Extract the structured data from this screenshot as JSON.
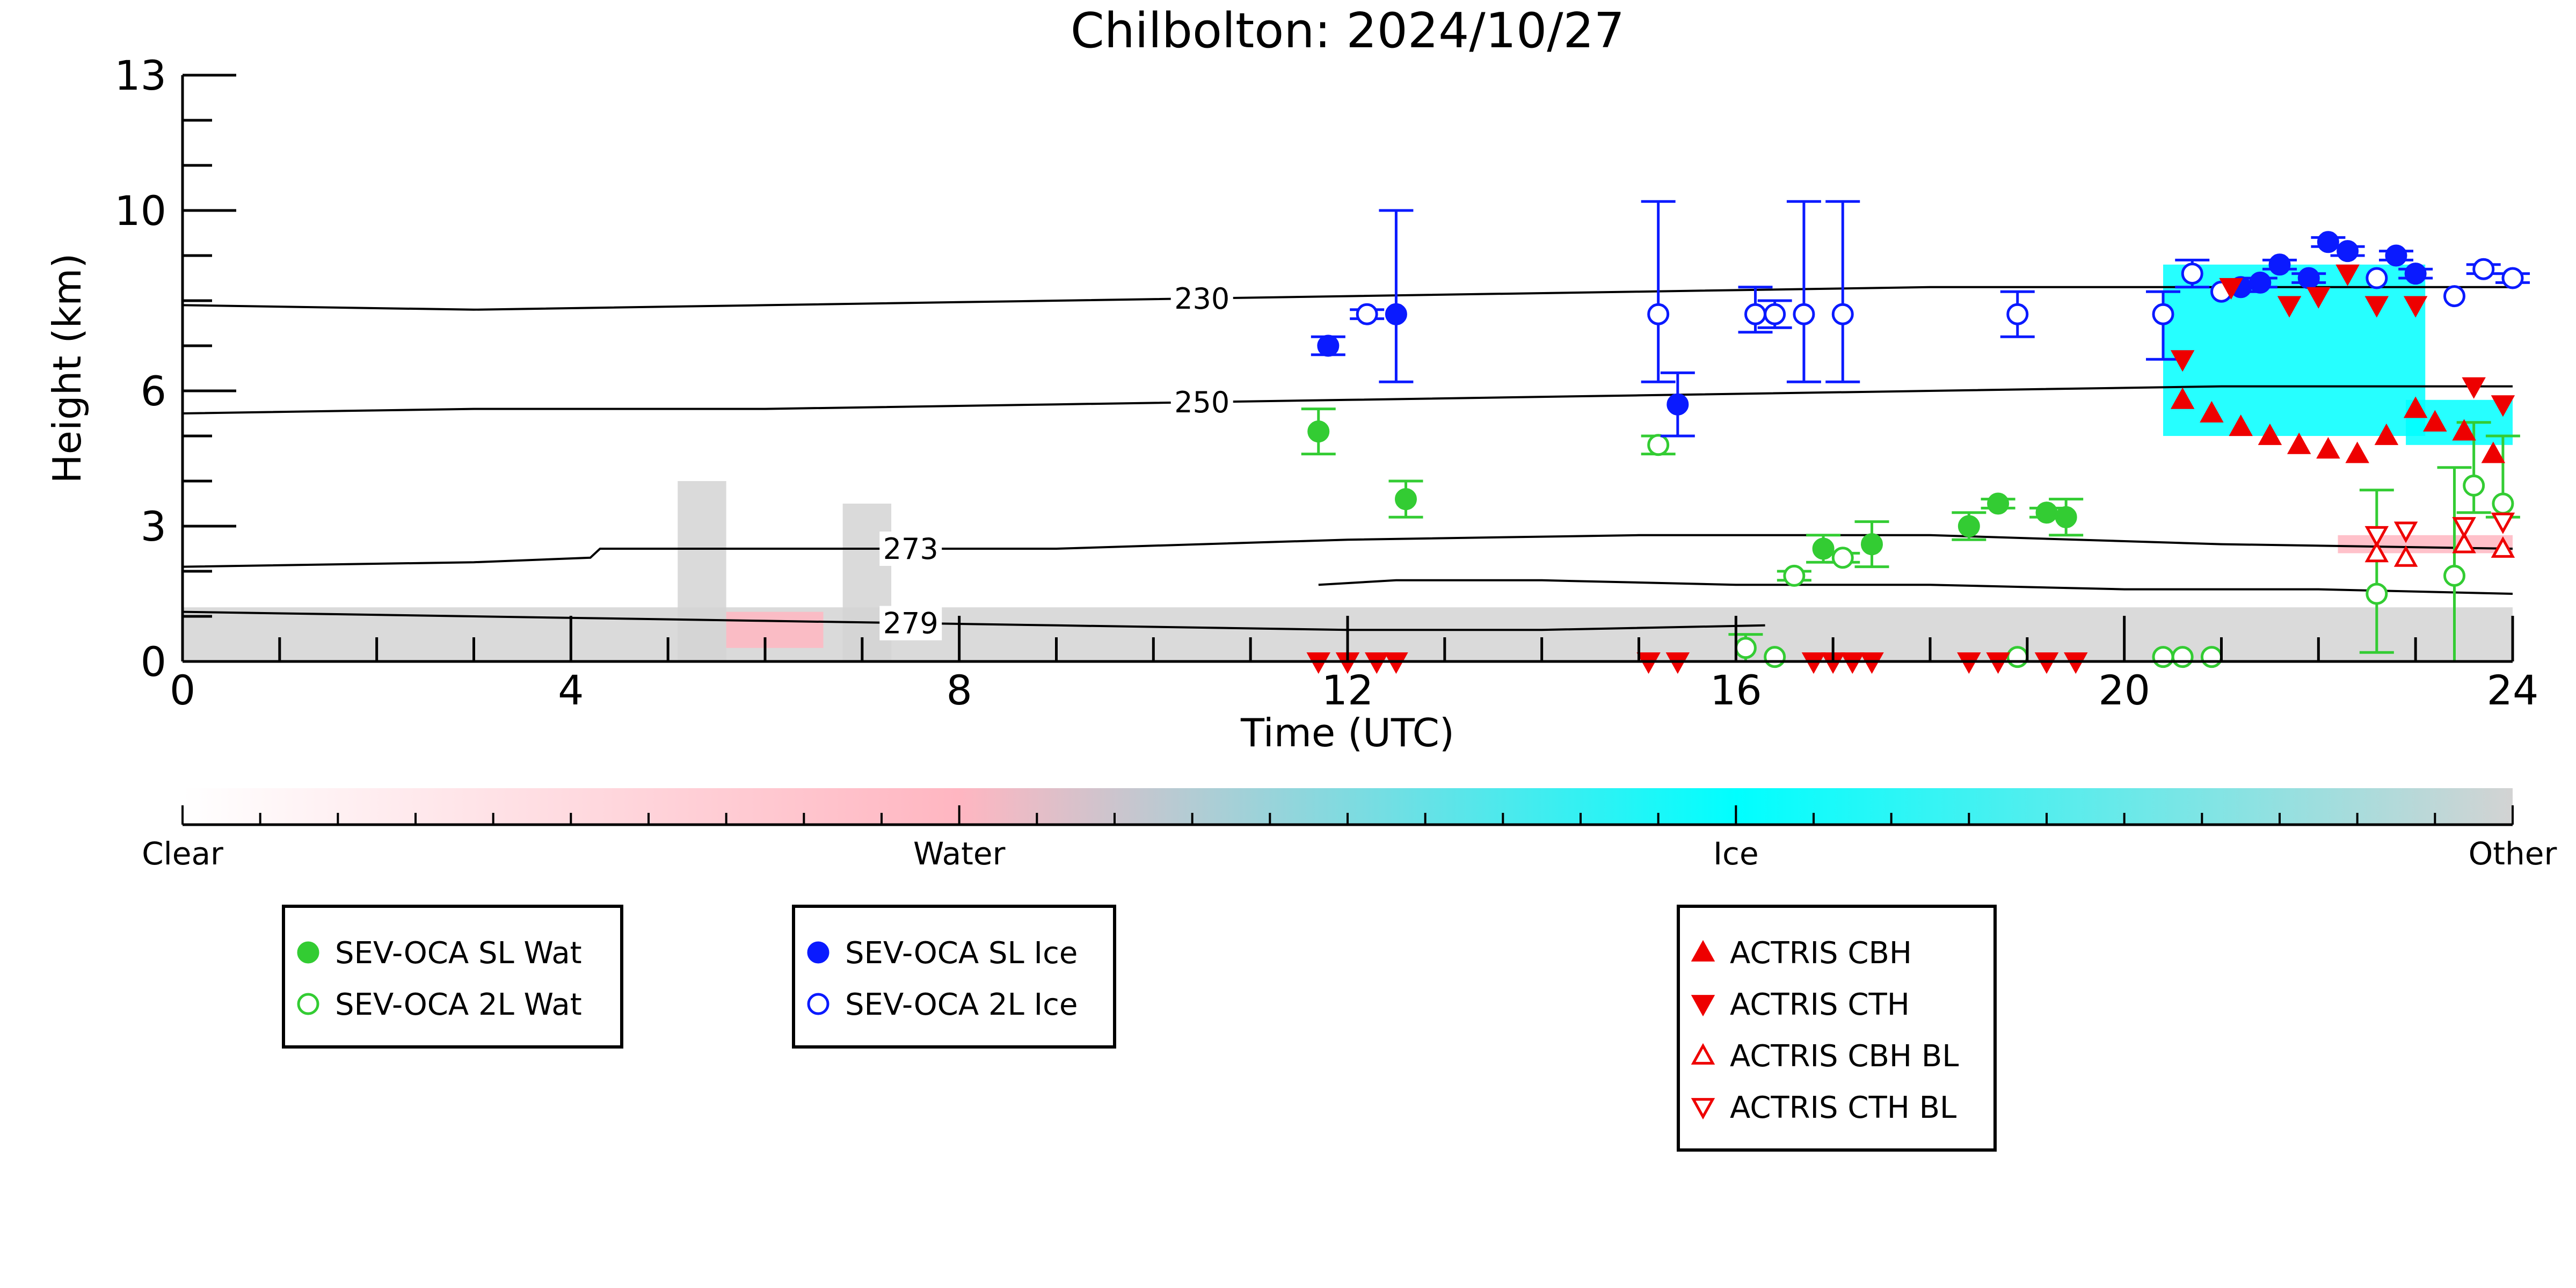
{
  "chart_data": {
    "type": "scatter",
    "title": "Chilbolton: 2024/10/27",
    "xlabel": "Time (UTC)",
    "ylabel": "Height (km)",
    "xlim": [
      0,
      24
    ],
    "ylim": [
      0,
      13
    ],
    "x_ticks": [
      0,
      4,
      8,
      12,
      16,
      20,
      24
    ],
    "y_ticks": [
      0,
      3,
      6,
      10,
      13
    ],
    "grid": false,
    "colorbar": {
      "labels": [
        "Clear",
        "Water",
        "Ice",
        "Other"
      ],
      "colors": [
        "#ffffff",
        "#ffb6c1",
        "#00ffff",
        "#d3d3d3"
      ]
    },
    "contours": [
      {
        "label": "230",
        "x": [
          0,
          3,
          6,
          9,
          12,
          15,
          18,
          21,
          24
        ],
        "y": [
          7.9,
          7.8,
          7.9,
          8.0,
          8.1,
          8.2,
          8.3,
          8.3,
          8.3
        ]
      },
      {
        "label": "250",
        "x": [
          0,
          3,
          6,
          9,
          12,
          15,
          18,
          21,
          24
        ],
        "y": [
          5.5,
          5.6,
          5.6,
          5.7,
          5.8,
          5.9,
          6.0,
          6.1,
          6.1
        ]
      },
      {
        "label": "273",
        "x": [
          0,
          3,
          4.2,
          4.3,
          6,
          9,
          12,
          15,
          18,
          21,
          24
        ],
        "y": [
          2.1,
          2.2,
          2.3,
          2.5,
          2.5,
          2.5,
          2.7,
          2.8,
          2.8,
          2.6,
          2.5
        ]
      },
      {
        "label": "279",
        "x": [
          0,
          3,
          6,
          9,
          12,
          14,
          16.3
        ],
        "y": [
          1.1,
          1.0,
          0.9,
          0.8,
          0.7,
          0.7,
          0.8
        ]
      },
      {
        "label": "",
        "x": [
          11.7,
          12.5,
          14,
          16,
          18,
          20,
          22,
          24
        ],
        "y": [
          1.7,
          1.8,
          1.8,
          1.7,
          1.7,
          1.6,
          1.6,
          1.5
        ]
      }
    ],
    "cloud_regions": [
      {
        "category": "Other",
        "x0": 0,
        "x1": 24,
        "y0": 0,
        "y1": 1.2
      },
      {
        "category": "Other",
        "x0": 5.1,
        "x1": 5.6,
        "y0": 0,
        "y1": 4.0
      },
      {
        "category": "Other",
        "x0": 6.8,
        "x1": 7.3,
        "y0": 0,
        "y1": 3.5
      },
      {
        "category": "Water",
        "x0": 5.6,
        "x1": 6.6,
        "y0": 0.3,
        "y1": 1.1
      },
      {
        "category": "Ice",
        "x0": 20.4,
        "x1": 23.1,
        "y0": 5.0,
        "y1": 8.8
      },
      {
        "category": "Ice",
        "x0": 22.9,
        "x1": 24,
        "y0": 4.8,
        "y1": 5.8
      },
      {
        "category": "Water",
        "x0": 22.2,
        "x1": 24,
        "y0": 2.4,
        "y1": 2.8
      }
    ],
    "series": [
      {
        "name": "SEV-OCA SL Wat",
        "color": "#33cc33",
        "marker": "circle-filled",
        "x": [
          11.7,
          12.6,
          16.9,
          17.4,
          18.4,
          18.7,
          19.2,
          19.4
        ],
        "y": [
          5.1,
          3.6,
          2.5,
          2.6,
          3.0,
          3.5,
          3.3,
          3.2
        ],
        "err_lo": [
          0.5,
          0.4,
          0.3,
          0.5,
          0.3,
          0.1,
          0.1,
          0.4
        ],
        "err_hi": [
          0.5,
          0.4,
          0.3,
          0.5,
          0.3,
          0.1,
          0.1,
          0.4
        ]
      },
      {
        "name": "SEV-OCA 2L Wat",
        "color": "#33cc33",
        "marker": "circle-open",
        "x": [
          15.2,
          16.1,
          16.4,
          16.6,
          17.1,
          18.9,
          20.4,
          20.6,
          20.9,
          22.6,
          23.4,
          23.6,
          23.9
        ],
        "y": [
          4.8,
          0.3,
          0.1,
          1.9,
          2.3,
          0.1,
          0.1,
          0.1,
          0.1,
          1.5,
          1.9,
          3.9,
          3.5
        ],
        "err_lo": [
          0.2,
          0.3,
          0,
          0.1,
          0.1,
          0,
          0,
          0,
          0,
          1.3,
          1.9,
          0.6,
          0.3
        ],
        "err_hi": [
          0.2,
          0.3,
          0,
          0.1,
          0.1,
          0,
          0,
          0,
          0,
          2.3,
          2.4,
          1.4,
          1.5
        ]
      },
      {
        "name": "SEV-OCA SL Ice",
        "color": "#0a1aff",
        "marker": "circle-filled",
        "x": [
          11.8,
          12.5,
          15.4,
          21.2,
          21.4,
          21.6,
          21.9,
          22.1,
          22.3,
          22.8,
          23.0
        ],
        "y": [
          7.0,
          7.7,
          5.7,
          8.3,
          8.4,
          8.8,
          8.5,
          9.3,
          9.1,
          9.0,
          8.6
        ],
        "err_lo": [
          0.2,
          1.5,
          0.7,
          0.1,
          0.1,
          0.1,
          0.1,
          0.1,
          0.1,
          0.1,
          0.1
        ],
        "err_hi": [
          0.2,
          2.3,
          0.7,
          0.1,
          0.1,
          0.1,
          0.1,
          0.1,
          0.1,
          0.1,
          0.1
        ]
      },
      {
        "name": "SEV-OCA 2L Ice",
        "color": "#0a1aff",
        "marker": "circle-open",
        "x": [
          12.2,
          15.2,
          16.2,
          16.4,
          16.7,
          17.1,
          18.9,
          20.4,
          20.7,
          21.0,
          22.6,
          23.4,
          23.7,
          24.0
        ],
        "y": [
          7.7,
          7.7,
          7.7,
          7.7,
          7.7,
          7.7,
          7.7,
          7.7,
          8.6,
          8.2,
          8.5,
          8.1,
          8.7,
          8.5
        ],
        "err_lo": [
          0.1,
          1.5,
          0.4,
          0.3,
          1.5,
          1.5,
          0.5,
          1.0,
          0.3,
          0,
          0,
          0,
          0.1,
          0.1
        ],
        "err_hi": [
          0.1,
          2.5,
          0.6,
          0.3,
          2.5,
          2.5,
          0.5,
          0.5,
          0.3,
          0,
          0,
          0,
          0.1,
          0.1
        ]
      },
      {
        "name": "ACTRIS CBH",
        "color": "#ee0000",
        "marker": "triangle-up-filled",
        "x": [
          20.6,
          20.9,
          21.2,
          21.5,
          21.8,
          22.1,
          22.4,
          22.7,
          23.0,
          23.2,
          23.5,
          23.8
        ],
        "y": [
          5.8,
          5.5,
          5.2,
          5.0,
          4.8,
          4.7,
          4.6,
          5.0,
          5.6,
          5.3,
          5.1,
          4.6
        ],
        "err_lo": [],
        "err_hi": []
      },
      {
        "name": "ACTRIS CTH",
        "color": "#ee0000",
        "marker": "triangle-down-filled",
        "x": [
          11.7,
          12.0,
          12.3,
          12.5,
          15.1,
          15.4,
          16.8,
          17.0,
          17.2,
          17.4,
          18.4,
          18.7,
          19.2,
          19.5,
          20.6,
          21.1,
          21.7,
          22.0,
          22.3,
          22.6,
          23.0,
          23.6,
          23.9
        ],
        "y": [
          0,
          0,
          0,
          0,
          0,
          0,
          0,
          0,
          0,
          0,
          0,
          0,
          0,
          0,
          6.7,
          8.3,
          7.9,
          8.1,
          8.6,
          7.9,
          7.9,
          6.1,
          5.7
        ],
        "err_lo": [],
        "err_hi": []
      },
      {
        "name": "ACTRIS CBH BL",
        "color": "#ee0000",
        "marker": "triangle-up-open",
        "x": [
          22.6,
          22.9,
          23.5,
          23.9
        ],
        "y": [
          2.4,
          2.3,
          2.6,
          2.5
        ],
        "err_lo": [],
        "err_hi": []
      },
      {
        "name": "ACTRIS CTH BL",
        "color": "#ee0000",
        "marker": "triangle-down-open",
        "x": [
          22.6,
          22.9,
          23.5,
          23.9
        ],
        "y": [
          2.8,
          2.9,
          3.0,
          3.1
        ],
        "err_lo": [],
        "err_hi": []
      }
    ],
    "legend_groups": [
      [
        "SEV-OCA SL Wat",
        "SEV-OCA 2L Wat"
      ],
      [
        "SEV-OCA SL Ice",
        "SEV-OCA 2L Ice"
      ],
      [
        "ACTRIS CBH",
        "ACTRIS CTH",
        "ACTRIS CBH BL",
        "ACTRIS CTH BL"
      ]
    ]
  }
}
